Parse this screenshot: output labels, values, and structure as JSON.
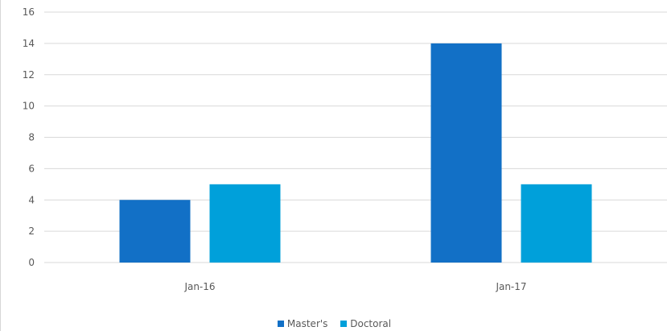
{
  "chart_data": {
    "type": "bar",
    "title": "",
    "xlabel": "",
    "ylabel": "",
    "categories": [
      "Jan-16",
      "Jan-17"
    ],
    "series": [
      {
        "name": "Master's",
        "values": [
          4,
          14
        ],
        "color": "#1270c6"
      },
      {
        "name": "Doctoral",
        "values": [
          5,
          5
        ],
        "color": "#00a0da"
      }
    ],
    "ylim": [
      0,
      16
    ],
    "yticks": [
      "0",
      "2",
      "4",
      "6",
      "8",
      "10",
      "12",
      "14",
      "16"
    ],
    "grid": true,
    "legend_position": "bottom"
  }
}
